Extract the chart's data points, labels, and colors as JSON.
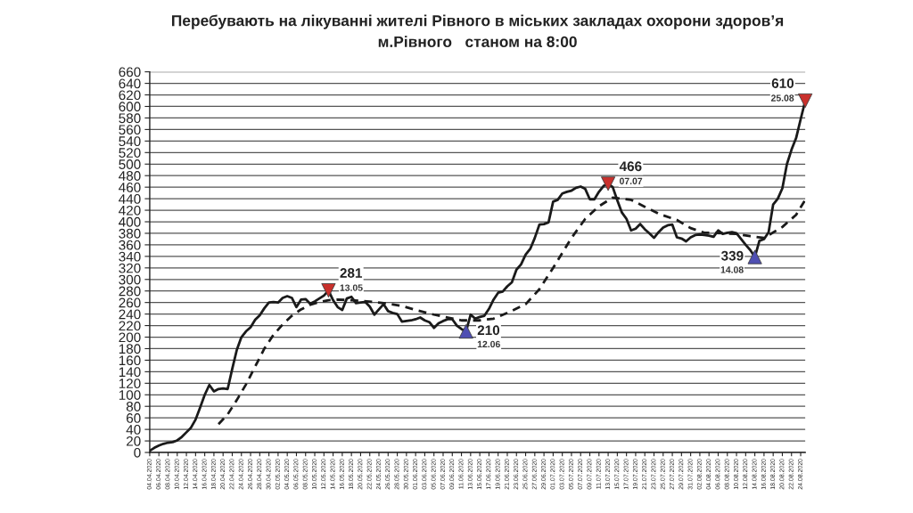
{
  "chart_data": {
    "type": "line",
    "title": "Перебувають на лікуванні жителі Рівного в міських закладах охорони здоров’я\nм.Рівного   станом на 8:00",
    "xlim": [
      "2020-04-04",
      "2020-08-25"
    ],
    "ylim": [
      0,
      660
    ],
    "yticks": [
      0,
      20,
      40,
      60,
      80,
      100,
      120,
      140,
      160,
      180,
      200,
      220,
      240,
      260,
      280,
      300,
      320,
      340,
      360,
      380,
      400,
      420,
      440,
      460,
      480,
      500,
      520,
      540,
      560,
      580,
      600,
      620,
      640,
      660
    ],
    "xticks": [
      {
        "value": "2020-04-04",
        "label": "04.04.2020"
      },
      {
        "value": "2020-04-06",
        "label": "06.04.2020"
      },
      {
        "value": "2020-04-08",
        "label": "08.04.2020"
      },
      {
        "value": "2020-04-10",
        "label": "10.04.2020"
      },
      {
        "value": "2020-04-12",
        "label": "12.04.2020"
      },
      {
        "value": "2020-04-14",
        "label": "14.04.2020"
      },
      {
        "value": "2020-04-16",
        "label": "16.04.2020"
      },
      {
        "value": "2020-04-18",
        "label": "18.04.2020"
      },
      {
        "value": "2020-04-20",
        "label": "20.04.2020"
      },
      {
        "value": "2020-04-22",
        "label": "22.04.2020"
      },
      {
        "value": "2020-04-24",
        "label": "24.04.2020"
      },
      {
        "value": "2020-04-26",
        "label": "26.04.2020"
      },
      {
        "value": "2020-04-28",
        "label": "28.04.2020"
      },
      {
        "value": "2020-04-30",
        "label": "30.04.2020"
      },
      {
        "value": "2020-05-02",
        "label": "02.05.2020"
      },
      {
        "value": "2020-05-04",
        "label": "04.05.2020"
      },
      {
        "value": "2020-05-06",
        "label": "06.05.2020"
      },
      {
        "value": "2020-05-08",
        "label": "08.05.2020"
      },
      {
        "value": "2020-05-10",
        "label": "10.05.2020"
      },
      {
        "value": "2020-05-12",
        "label": "12.05.2020"
      },
      {
        "value": "2020-05-14",
        "label": "14.05.2020"
      },
      {
        "value": "2020-05-16",
        "label": "16.05.2020"
      },
      {
        "value": "2020-05-18",
        "label": "18.05.2020"
      },
      {
        "value": "2020-05-20",
        "label": "20.05.2020"
      },
      {
        "value": "2020-05-22",
        "label": "22.05.2020"
      },
      {
        "value": "2020-05-24",
        "label": "24.05.2020"
      },
      {
        "value": "2020-05-26",
        "label": "26.05.2020"
      },
      {
        "value": "2020-05-28",
        "label": "28.05.2020"
      },
      {
        "value": "2020-05-30",
        "label": "30.05.2020"
      },
      {
        "value": "2020-06-01",
        "label": "01.06.2020"
      },
      {
        "value": "2020-06-03",
        "label": "03.06.2020"
      },
      {
        "value": "2020-06-05",
        "label": "05.06.2020"
      },
      {
        "value": "2020-06-07",
        "label": "07.06.2020"
      },
      {
        "value": "2020-06-09",
        "label": "09.06.2020"
      },
      {
        "value": "2020-06-11",
        "label": "11.06.2020"
      },
      {
        "value": "2020-06-13",
        "label": "13.06.2020"
      },
      {
        "value": "2020-06-15",
        "label": "15.06.2020"
      },
      {
        "value": "2020-06-17",
        "label": "17.06.2020"
      },
      {
        "value": "2020-06-19",
        "label": "19.06.2020"
      },
      {
        "value": "2020-06-21",
        "label": "21.06.2020"
      },
      {
        "value": "2020-06-23",
        "label": "23.06.2020"
      },
      {
        "value": "2020-06-25",
        "label": "25.06.2020"
      },
      {
        "value": "2020-06-27",
        "label": "27.06.2020"
      },
      {
        "value": "2020-06-29",
        "label": "29.06.2020"
      },
      {
        "value": "2020-07-01",
        "label": "01.07.2020"
      },
      {
        "value": "2020-07-03",
        "label": "03.07.2020"
      },
      {
        "value": "2020-07-05",
        "label": "05.07.2020"
      },
      {
        "value": "2020-07-07",
        "label": "07.07.2020"
      },
      {
        "value": "2020-07-09",
        "label": "09.07.2020"
      },
      {
        "value": "2020-07-11",
        "label": "11.07.2020"
      },
      {
        "value": "2020-07-13",
        "label": "13.07.2020"
      },
      {
        "value": "2020-07-15",
        "label": "15.07.2020"
      },
      {
        "value": "2020-07-17",
        "label": "17.07.2020"
      },
      {
        "value": "2020-07-19",
        "label": "19.07.2020"
      },
      {
        "value": "2020-07-21",
        "label": "21.07.2020"
      },
      {
        "value": "2020-07-23",
        "label": "23.07.2020"
      },
      {
        "value": "2020-07-25",
        "label": "25.07.2020"
      },
      {
        "value": "2020-07-27",
        "label": "27.07.2020"
      },
      {
        "value": "2020-07-29",
        "label": "29.07.2020"
      },
      {
        "value": "2020-07-31",
        "label": "31.07.2020"
      },
      {
        "value": "2020-08-02",
        "label": "02.08.2020"
      },
      {
        "value": "2020-08-04",
        "label": "04.08.2020"
      },
      {
        "value": "2020-08-06",
        "label": "06.08.2020"
      },
      {
        "value": "2020-08-08",
        "label": "08.08.2020"
      },
      {
        "value": "2020-08-10",
        "label": "10.08.2020"
      },
      {
        "value": "2020-08-12",
        "label": "12.08.2020"
      },
      {
        "value": "2020-08-14",
        "label": "14.08.2020"
      },
      {
        "value": "2020-08-16",
        "label": "16.08.2020"
      },
      {
        "value": "2020-08-18",
        "label": "18.08.2020"
      },
      {
        "value": "2020-08-20",
        "label": "20.08.2020"
      },
      {
        "value": "2020-08-22",
        "label": "22.08.2020"
      },
      {
        "value": "2020-08-24",
        "label": "24.08.2020"
      }
    ],
    "grid": "y",
    "series": [
      {
        "color": "#1a1a1a",
        "line_style": "solid",
        "x": [
          "2020-04-04",
          "2020-04-05",
          "2020-04-06",
          "2020-04-07",
          "2020-04-08",
          "2020-04-09",
          "2020-04-10",
          "2020-04-11",
          "2020-04-12",
          "2020-04-13",
          "2020-04-14",
          "2020-04-15",
          "2020-04-16",
          "2020-04-17",
          "2020-04-18",
          "2020-04-19",
          "2020-04-20",
          "2020-04-21",
          "2020-04-22",
          "2020-04-23",
          "2020-04-24",
          "2020-04-25",
          "2020-04-26",
          "2020-04-27",
          "2020-04-28",
          "2020-04-29",
          "2020-04-30",
          "2020-05-01",
          "2020-05-02",
          "2020-05-03",
          "2020-05-04",
          "2020-05-05",
          "2020-05-06",
          "2020-05-07",
          "2020-05-08",
          "2020-05-09",
          "2020-05-10",
          "2020-05-11",
          "2020-05-12",
          "2020-05-13",
          "2020-05-14",
          "2020-05-15",
          "2020-05-16",
          "2020-05-17",
          "2020-05-18",
          "2020-05-19",
          "2020-05-20",
          "2020-05-21",
          "2020-05-22",
          "2020-05-23",
          "2020-05-24",
          "2020-05-25",
          "2020-05-26",
          "2020-05-27",
          "2020-05-28",
          "2020-05-29",
          "2020-05-30",
          "2020-05-31",
          "2020-06-01",
          "2020-06-02",
          "2020-06-03",
          "2020-06-04",
          "2020-06-05",
          "2020-06-06",
          "2020-06-07",
          "2020-06-08",
          "2020-06-09",
          "2020-06-10",
          "2020-06-11",
          "2020-06-12",
          "2020-06-13",
          "2020-06-14",
          "2020-06-15",
          "2020-06-16",
          "2020-06-17",
          "2020-06-18",
          "2020-06-19",
          "2020-06-20",
          "2020-06-21",
          "2020-06-22",
          "2020-06-23",
          "2020-06-24",
          "2020-06-25",
          "2020-06-26",
          "2020-06-27",
          "2020-06-28",
          "2020-06-29",
          "2020-06-30",
          "2020-07-01",
          "2020-07-02",
          "2020-07-03",
          "2020-07-04",
          "2020-07-05",
          "2020-07-06",
          "2020-07-07",
          "2020-07-08",
          "2020-07-09",
          "2020-07-10",
          "2020-07-11",
          "2020-07-12",
          "2020-07-13",
          "2020-07-14",
          "2020-07-15",
          "2020-07-16",
          "2020-07-17",
          "2020-07-18",
          "2020-07-19",
          "2020-07-20",
          "2020-07-21",
          "2020-07-22",
          "2020-07-23",
          "2020-07-24",
          "2020-07-25",
          "2020-07-26",
          "2020-07-27",
          "2020-07-28",
          "2020-07-29",
          "2020-07-30",
          "2020-07-31",
          "2020-08-01",
          "2020-08-02",
          "2020-08-03",
          "2020-08-04",
          "2020-08-05",
          "2020-08-06",
          "2020-08-07",
          "2020-08-08",
          "2020-08-09",
          "2020-08-10",
          "2020-08-11",
          "2020-08-12",
          "2020-08-13",
          "2020-08-14",
          "2020-08-15",
          "2020-08-16",
          "2020-08-17",
          "2020-08-18",
          "2020-08-19",
          "2020-08-20",
          "2020-08-21",
          "2020-08-22",
          "2020-08-23",
          "2020-08-24",
          "2020-08-25"
        ],
        "values": [
          3,
          8,
          12,
          15,
          17,
          18,
          21,
          27,
          35,
          43,
          57,
          78,
          100,
          117,
          106,
          110,
          111,
          110,
          145,
          178,
          200,
          210,
          217,
          230,
          238,
          250,
          260,
          261,
          260,
          268,
          271,
          268,
          252,
          265,
          266,
          258,
          262,
          267,
          272,
          281,
          264,
          252,
          247,
          267,
          270,
          259,
          260,
          261,
          253,
          239,
          248,
          257,
          245,
          242,
          240,
          227,
          228,
          229,
          231,
          234,
          229,
          226,
          216,
          224,
          228,
          231,
          231,
          220,
          214,
          210,
          239,
          232,
          235,
          237,
          249,
          265,
          277,
          279,
          288,
          295,
          317,
          326,
          343,
          353,
          372,
          395,
          396,
          399,
          435,
          438,
          449,
          452,
          454,
          459,
          461,
          457,
          439,
          439,
          452,
          462,
          466,
          460,
          437,
          416,
          405,
          385,
          388,
          396,
          387,
          380,
          372,
          382,
          390,
          394,
          395,
          373,
          371,
          366,
          373,
          377,
          378,
          377,
          376,
          374,
          385,
          379,
          381,
          382,
          380,
          370,
          360,
          351,
          339,
          367,
          370,
          382,
          430,
          440,
          458,
          500,
          525,
          545,
          578,
          610
        ]
      },
      {
        "color": "#1a1a1a",
        "line_style": "dashed",
        "x": [
          "2020-04-19",
          "2020-04-21",
          "2020-04-23",
          "2020-04-25",
          "2020-04-27",
          "2020-04-29",
          "2020-05-01",
          "2020-05-03",
          "2020-05-05",
          "2020-05-07",
          "2020-05-09",
          "2020-05-11",
          "2020-05-13",
          "2020-05-15",
          "2020-05-18",
          "2020-05-20",
          "2020-05-23",
          "2020-05-26",
          "2020-05-29",
          "2020-06-01",
          "2020-06-05",
          "2020-06-08",
          "2020-06-11",
          "2020-06-15",
          "2020-06-18",
          "2020-06-21",
          "2020-06-25",
          "2020-06-28",
          "2020-07-01",
          "2020-07-05",
          "2020-07-08",
          "2020-07-11",
          "2020-07-14",
          "2020-07-18",
          "2020-07-21",
          "2020-07-24",
          "2020-07-28",
          "2020-07-31",
          "2020-08-03",
          "2020-08-07",
          "2020-08-10",
          "2020-08-13",
          "2020-08-16",
          "2020-08-20",
          "2020-08-23",
          "2020-08-25"
        ],
        "values": [
          49,
          66,
          91,
          118,
          149,
          180,
          204,
          222,
          237,
          248,
          256,
          261,
          264,
          265,
          264,
          263,
          261,
          258,
          254,
          247,
          239,
          234,
          229,
          229,
          232,
          242,
          257,
          283,
          320,
          372,
          405,
          427,
          442,
          438,
          426,
          414,
          403,
          389,
          381,
          380,
          379,
          375,
          372,
          391,
          412,
          438
        ]
      },
      {
        "type": "scatter",
        "color": "#c9302c",
        "marker": "triangle",
        "x": [
          "2020-05-13",
          "2020-07-13",
          "2020-08-25"
        ],
        "values": [
          281,
          466,
          610
        ],
        "value_labels": [
          "281",
          "466",
          "610"
        ]
      },
      {
        "type": "scatter",
        "color": "#4f4fb3",
        "marker": "triangle",
        "x": [
          "2020-06-12",
          "2020-08-14"
        ],
        "values": [
          210,
          339
        ],
        "value_labels": [
          "210",
          "339"
        ]
      }
    ],
    "annotations": [
      {
        "text": "13.05",
        "x": "2020-05-13",
        "y": 281
      },
      {
        "text": "12.06",
        "x": "2020-06-12",
        "y": 210
      },
      {
        "text": "07.07",
        "x": "2020-07-13",
        "y": 466
      },
      {
        "text": "14.08",
        "x": "2020-08-14",
        "y": 339
      },
      {
        "text": "25.08",
        "x": "2020-08-25",
        "y": 610
      }
    ]
  }
}
